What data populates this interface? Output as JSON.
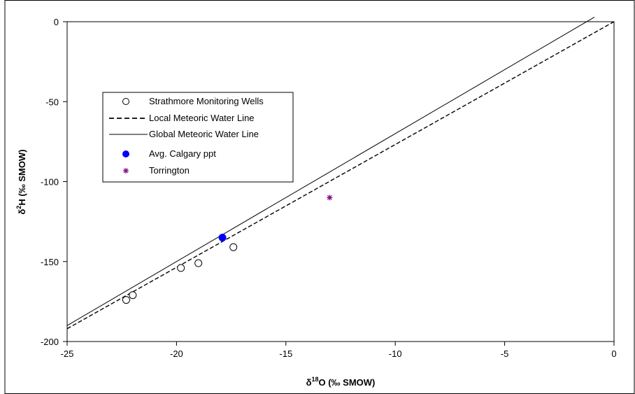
{
  "chart_data": {
    "type": "scatter",
    "title": "",
    "xlabel": {
      "base": "δ",
      "sup": "18",
      "rest": "O (‰ SMOW)"
    },
    "ylabel": {
      "base": "δ",
      "sup": "2",
      "rest": "H (‰ SMOW)"
    },
    "xlim": [
      -25,
      0
    ],
    "ylim": [
      -200,
      0
    ],
    "xticks": [
      -25,
      -20,
      -15,
      -10,
      -5,
      0
    ],
    "yticks": [
      -200,
      -150,
      -100,
      -50,
      0
    ],
    "grid": false,
    "legend_position": "upper-left",
    "series": [
      {
        "name": "Strathmore Monitoring Wells",
        "kind": "marker",
        "marker": "open-circle",
        "color": "#000000",
        "points": [
          {
            "x": -22.3,
            "y": -174
          },
          {
            "x": -22.0,
            "y": -171
          },
          {
            "x": -19.8,
            "y": -154
          },
          {
            "x": -19.0,
            "y": -151
          },
          {
            "x": -17.4,
            "y": -141
          }
        ]
      },
      {
        "name": "Local Meteoric Water Line",
        "kind": "line",
        "style": "dashed",
        "color": "#000000",
        "points": [
          {
            "x": -25,
            "y": -192
          },
          {
            "x": 0,
            "y": 0
          }
        ]
      },
      {
        "name": "Global Meteoric Water Line",
        "kind": "line",
        "style": "solid",
        "color": "#000000",
        "points": [
          {
            "x": -25,
            "y": -190
          },
          {
            "x": -0.9,
            "y": 2.8
          }
        ]
      },
      {
        "name": "Avg. Calgary ppt",
        "kind": "marker",
        "marker": "filled-circle",
        "color": "#0000ff",
        "points": [
          {
            "x": -17.9,
            "y": -135
          }
        ]
      },
      {
        "name": "Torrington",
        "kind": "marker",
        "marker": "asterisk",
        "color": "#800080",
        "points": [
          {
            "x": -13.0,
            "y": -110
          }
        ]
      }
    ]
  }
}
